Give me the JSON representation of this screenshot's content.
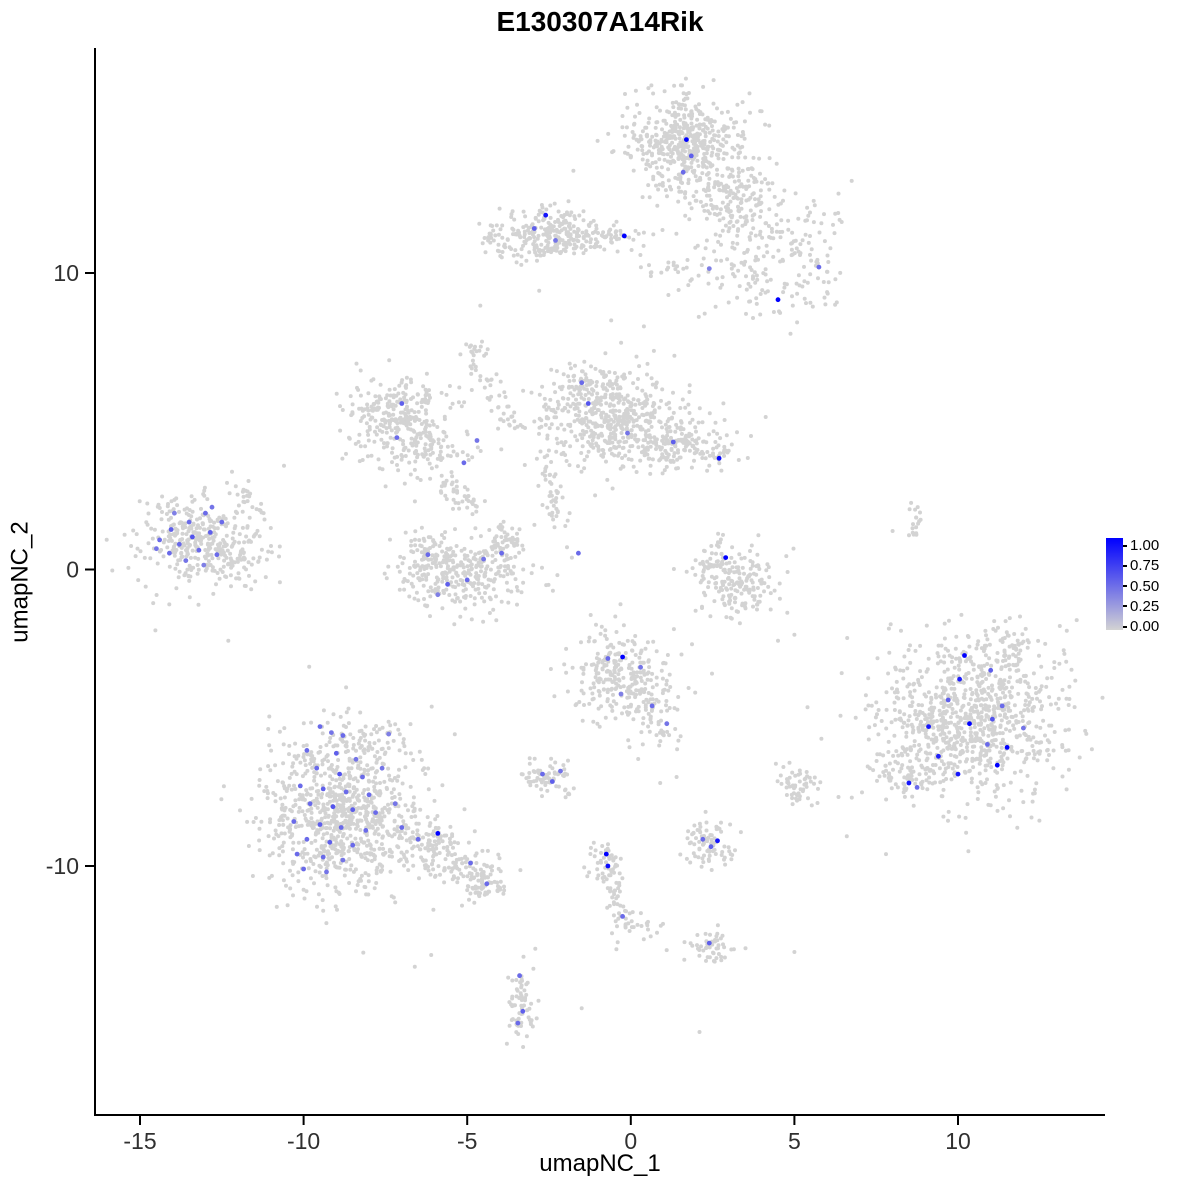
{
  "title": "E130307A14Rik",
  "axes": {
    "x": {
      "label": "umapNC_1",
      "ticks": [
        -15,
        -10,
        -5,
        0,
        5,
        10
      ],
      "range": [
        -16.4,
        14.5
      ]
    },
    "y": {
      "label": "umapNC_2",
      "ticks": [
        10,
        0,
        -10
      ],
      "range": [
        -18.4,
        17.6
      ]
    }
  },
  "legend": {
    "labels": [
      "1.00",
      "0.75",
      "0.50",
      "0.25",
      "0.00"
    ],
    "high": "#0000FF",
    "low": "#D3D3D3"
  },
  "chart_data": {
    "type": "scatter",
    "title": "E130307A14Rik",
    "xlabel": "umapNC_1",
    "ylabel": "umapNC_2",
    "xlim": [
      -16.4,
      14.5
    ],
    "ylim": [
      -18.4,
      17.6
    ],
    "grid": false,
    "legend_position": "right",
    "color_low": "#D3D3D3",
    "color_high": "#0000FF",
    "point_radius": 2,
    "clusters": [
      {
        "name": "top-main",
        "cx": 1.7,
        "cy": 14.3,
        "sx": 0.95,
        "sy": 0.85,
        "n": 500
      },
      {
        "name": "top-sub",
        "cx": 3.2,
        "cy": 12.7,
        "sx": 0.7,
        "sy": 0.6,
        "n": 120
      },
      {
        "name": "top-right-scatter",
        "cx": 4.6,
        "cy": 11.4,
        "sx": 1.2,
        "sy": 0.8,
        "n": 80
      },
      {
        "name": "top-small",
        "cx": 1.0,
        "cy": 10.2,
        "sx": 0.35,
        "sy": 0.15,
        "n": 14
      },
      {
        "name": "upper-mid",
        "cx": -2.5,
        "cy": 11.4,
        "sx": 0.85,
        "sy": 0.42,
        "n": 220
      },
      {
        "name": "upper-mid-tail",
        "cx": -0.9,
        "cy": 11.2,
        "sx": 0.7,
        "sy": 0.3,
        "n": 60
      },
      {
        "name": "upper-mid-left",
        "cx": -4.2,
        "cy": 11.1,
        "sx": 0.3,
        "sy": 0.25,
        "n": 25
      },
      {
        "name": "upper-right-scatter",
        "cx": 4.3,
        "cy": 10.1,
        "sx": 1.2,
        "sy": 0.85,
        "n": 140
      },
      {
        "name": "mid-left",
        "cx": -7.2,
        "cy": 5.2,
        "sx": 0.85,
        "sy": 0.7,
        "n": 280
      },
      {
        "name": "mid-left-arm",
        "cx": -6.2,
        "cy": 4.0,
        "sx": 0.6,
        "sy": 0.55,
        "n": 80
      },
      {
        "name": "central",
        "cx": -0.6,
        "cy": 5.0,
        "sx": 1.15,
        "sy": 0.8,
        "n": 550
      },
      {
        "name": "central-right",
        "cx": 1.5,
        "cy": 4.2,
        "sx": 0.8,
        "sy": 0.5,
        "n": 120
      },
      {
        "name": "central-tip",
        "cx": 2.5,
        "cy": 3.8,
        "sx": 0.3,
        "sy": 0.2,
        "n": 25
      },
      {
        "name": "central-top",
        "cx": -1.4,
        "cy": 6.4,
        "sx": 0.5,
        "sy": 0.3,
        "n": 40
      },
      {
        "name": "far-left",
        "cx": -13.3,
        "cy": 1.0,
        "sx": 0.85,
        "sy": 0.75,
        "n": 330
      },
      {
        "name": "far-left-edge",
        "cx": -11.9,
        "cy": 0.4,
        "sx": 0.5,
        "sy": 0.45,
        "n": 60
      },
      {
        "name": "far-left-nub",
        "cx": -11.5,
        "cy": 2.3,
        "sx": 0.25,
        "sy": 0.3,
        "n": 22
      },
      {
        "name": "center-low-core",
        "cx": -5.2,
        "cy": -0.2,
        "sx": 0.95,
        "sy": 0.55,
        "n": 300
      },
      {
        "name": "center-low-left-arm",
        "cx": -6.3,
        "cy": 0.7,
        "sx": 0.35,
        "sy": 0.4,
        "n": 55
      },
      {
        "name": "center-low-right-arm",
        "cx": -3.9,
        "cy": 0.8,
        "sx": 0.35,
        "sy": 0.4,
        "n": 55
      },
      {
        "name": "right-crescent",
        "cx": 3.3,
        "cy": -0.5,
        "sx": 0.6,
        "sy": 0.6,
        "n": 170
      },
      {
        "name": "right-crescent-arm",
        "cx": 2.6,
        "cy": 0.3,
        "sx": 0.3,
        "sy": 0.35,
        "n": 45
      },
      {
        "name": "mid-low",
        "cx": -0.4,
        "cy": -3.6,
        "sx": 0.75,
        "sy": 0.75,
        "n": 260
      },
      {
        "name": "mid-low-tail",
        "cx": 0.8,
        "cy": -4.9,
        "sx": 0.45,
        "sy": 0.5,
        "n": 60
      },
      {
        "name": "right-main",
        "cx": 10.4,
        "cy": -5.0,
        "sx": 1.45,
        "sy": 1.25,
        "n": 900
      },
      {
        "name": "right-main-top",
        "cx": 11.3,
        "cy": -2.8,
        "sx": 0.7,
        "sy": 0.45,
        "n": 70
      },
      {
        "name": "right-main-tip",
        "cx": 8.4,
        "cy": -6.9,
        "sx": 0.5,
        "sy": 0.4,
        "n": 70
      },
      {
        "name": "bottom-left-main",
        "cx": -8.8,
        "cy": -8.2,
        "sx": 1.25,
        "sy": 1.35,
        "n": 900
      },
      {
        "name": "bottom-left-top",
        "cx": -8.2,
        "cy": -5.9,
        "sx": 0.6,
        "sy": 0.4,
        "n": 55
      },
      {
        "name": "bottom-left-tip",
        "cx": -4.4,
        "cy": -10.6,
        "sx": 0.4,
        "sy": 0.35,
        "n": 60
      },
      {
        "name": "small-center-low",
        "cx": -2.5,
        "cy": -7.0,
        "sx": 0.4,
        "sy": 0.33,
        "n": 70
      },
      {
        "name": "small-right-low",
        "cx": 2.4,
        "cy": -9.2,
        "sx": 0.42,
        "sy": 0.38,
        "n": 80
      },
      {
        "name": "small-mid-strand-top",
        "cx": -0.8,
        "cy": -9.9,
        "sx": 0.28,
        "sy": 0.45,
        "n": 50
      },
      {
        "name": "small-below",
        "cx": 0.1,
        "cy": -12.1,
        "sx": 0.4,
        "sy": 0.35,
        "n": 28
      },
      {
        "name": "small-bottom-right",
        "cx": 2.5,
        "cy": -12.7,
        "sx": 0.33,
        "sy": 0.28,
        "n": 48
      },
      {
        "name": "bottom-strand",
        "cx": -3.4,
        "cy": -14.6,
        "sx": 0.22,
        "sy": 0.75,
        "n": 70
      },
      {
        "name": "small-right-mid",
        "cx": 5.1,
        "cy": -7.2,
        "sx": 0.33,
        "sy": 0.38,
        "n": 55
      }
    ],
    "strands": [
      {
        "x1": -4.9,
        "y1": 7.6,
        "x2": -3.7,
        "y2": 4.9,
        "n": 55,
        "jitter": 0.18
      },
      {
        "x1": -2.6,
        "y1": 3.4,
        "x2": -2.2,
        "y2": 1.4,
        "n": 40,
        "jitter": 0.15
      },
      {
        "x1": -5.9,
        "y1": 3.0,
        "x2": -4.6,
        "y2": 2.1,
        "n": 40,
        "jitter": 0.18
      },
      {
        "x1": -0.7,
        "y1": -10.3,
        "x2": -0.2,
        "y2": -12.0,
        "n": 32,
        "jitter": 0.12
      },
      {
        "x1": 8.65,
        "y1": 2.1,
        "x2": 8.75,
        "y2": 0.9,
        "n": 18,
        "jitter": 0.1
      },
      {
        "x1": -6.6,
        "y1": -9.0,
        "x2": -4.6,
        "y2": -10.4,
        "n": 150,
        "jitter": 0.4
      },
      {
        "x1": -3.3,
        "y1": 10.6,
        "x2": -2.0,
        "y2": 10.9,
        "n": 20,
        "jitter": 0.12
      },
      {
        "x1": 2.5,
        "y1": 12.3,
        "x2": 3.6,
        "y2": 11.6,
        "n": 25,
        "jitter": 0.25
      }
    ],
    "singles": [
      [
        -10.6,
        3.5
      ],
      [
        -4.6,
        8.9
      ],
      [
        -0.6,
        8.4
      ],
      [
        0.4,
        8.2
      ],
      [
        8.0,
        1.3
      ],
      [
        -6.6,
        -13.4
      ],
      [
        -6.1,
        -13.0
      ],
      [
        2.1,
        -15.6
      ],
      [
        5.0,
        -12.9
      ],
      [
        6.6,
        -9.0
      ],
      [
        -1.5,
        -14.8
      ],
      [
        7.8,
        -9.6
      ],
      [
        0.9,
        -7.2
      ],
      [
        1.4,
        -7.0
      ],
      [
        -12.3,
        -2.4
      ],
      [
        4.5,
        -2.4
      ],
      [
        5.0,
        -2.2
      ],
      [
        -1.8,
        0.4
      ],
      [
        -1.95,
        0.75
      ],
      [
        -2.8,
        9.4
      ]
    ],
    "expressing": [
      [
        1.7,
        14.5,
        1.0
      ],
      [
        1.85,
        13.95,
        0.55
      ],
      [
        1.6,
        13.4,
        0.5
      ],
      [
        -2.6,
        11.95,
        0.9
      ],
      [
        -2.95,
        11.5,
        0.55
      ],
      [
        -2.3,
        11.1,
        0.45
      ],
      [
        -0.2,
        11.25,
        1.0
      ],
      [
        2.4,
        10.15,
        0.4
      ],
      [
        5.75,
        10.2,
        0.5
      ],
      [
        4.5,
        9.1,
        1.0
      ],
      [
        -1.5,
        6.3,
        0.5
      ],
      [
        -1.3,
        5.6,
        0.6
      ],
      [
        1.3,
        4.3,
        0.55
      ],
      [
        2.7,
        3.75,
        0.95
      ],
      [
        -0.1,
        4.6,
        0.45
      ],
      [
        -7.0,
        5.6,
        0.55
      ],
      [
        -7.15,
        4.45,
        0.5
      ],
      [
        -5.1,
        3.6,
        0.5
      ],
      [
        -4.7,
        4.35,
        0.45
      ],
      [
        -6.2,
        0.5,
        0.5
      ],
      [
        -5.6,
        -0.5,
        0.55
      ],
      [
        -5.0,
        -0.35,
        0.5
      ],
      [
        -4.5,
        0.35,
        0.45
      ],
      [
        -3.95,
        0.55,
        0.5
      ],
      [
        -5.9,
        -0.85,
        0.4
      ],
      [
        -1.6,
        0.55,
        0.5
      ],
      [
        2.9,
        0.4,
        1.0
      ],
      [
        -14.4,
        1.0,
        0.5
      ],
      [
        -14.05,
        1.35,
        0.55
      ],
      [
        -13.8,
        0.85,
        0.5
      ],
      [
        -13.5,
        1.6,
        0.5
      ],
      [
        -13.4,
        1.1,
        0.6
      ],
      [
        -13.2,
        0.65,
        0.5
      ],
      [
        -13.0,
        1.9,
        0.5
      ],
      [
        -12.85,
        1.25,
        0.55
      ],
      [
        -12.65,
        0.5,
        0.5
      ],
      [
        -13.6,
        0.3,
        0.45
      ],
      [
        -14.1,
        0.55,
        0.5
      ],
      [
        -12.5,
        1.6,
        0.5
      ],
      [
        -13.05,
        0.15,
        0.4
      ],
      [
        -12.8,
        2.1,
        0.45
      ],
      [
        -13.95,
        1.9,
        0.4
      ],
      [
        -14.5,
        0.7,
        0.45
      ],
      [
        -0.25,
        -2.95,
        1.0
      ],
      [
        -0.7,
        -3.0,
        0.5
      ],
      [
        0.3,
        -3.3,
        0.45
      ],
      [
        0.65,
        -4.6,
        0.5
      ],
      [
        1.1,
        -5.2,
        0.45
      ],
      [
        -0.3,
        -4.2,
        0.4
      ],
      [
        10.2,
        -2.9,
        1.0
      ],
      [
        10.05,
        -3.7,
        0.85
      ],
      [
        11.0,
        -3.4,
        0.55
      ],
      [
        9.1,
        -5.3,
        0.9
      ],
      [
        10.35,
        -5.2,
        1.0
      ],
      [
        11.05,
        -5.05,
        0.6
      ],
      [
        10.9,
        -5.9,
        0.5
      ],
      [
        11.5,
        -6.0,
        1.0
      ],
      [
        9.4,
        -6.3,
        0.85
      ],
      [
        11.2,
        -6.6,
        1.0
      ],
      [
        10.0,
        -6.9,
        0.9
      ],
      [
        8.5,
        -7.2,
        0.9
      ],
      [
        8.75,
        -7.35,
        0.5
      ],
      [
        11.35,
        -4.6,
        0.5
      ],
      [
        12.0,
        -5.35,
        0.45
      ],
      [
        9.7,
        -4.4,
        0.55
      ],
      [
        -9.5,
        -5.3,
        0.5
      ],
      [
        -9.15,
        -5.5,
        0.45
      ],
      [
        -8.8,
        -5.6,
        0.5
      ],
      [
        -9.9,
        -6.1,
        0.5
      ],
      [
        -9.0,
        -6.2,
        0.55
      ],
      [
        -8.4,
        -6.4,
        0.45
      ],
      [
        -9.6,
        -6.7,
        0.5
      ],
      [
        -8.9,
        -6.9,
        0.6
      ],
      [
        -8.2,
        -7.0,
        0.5
      ],
      [
        -7.6,
        -6.7,
        0.45
      ],
      [
        -10.1,
        -7.3,
        0.5
      ],
      [
        -9.4,
        -7.4,
        0.55
      ],
      [
        -8.7,
        -7.5,
        0.5
      ],
      [
        -8.0,
        -7.6,
        0.5
      ],
      [
        -9.8,
        -7.9,
        0.5
      ],
      [
        -9.1,
        -8.0,
        0.6
      ],
      [
        -8.5,
        -8.1,
        0.55
      ],
      [
        -7.8,
        -8.2,
        0.5
      ],
      [
        -7.2,
        -7.9,
        0.45
      ],
      [
        -10.3,
        -8.5,
        0.5
      ],
      [
        -9.5,
        -8.6,
        0.55
      ],
      [
        -8.85,
        -8.7,
        0.5
      ],
      [
        -8.1,
        -8.8,
        0.5
      ],
      [
        -9.9,
        -9.1,
        0.5
      ],
      [
        -9.2,
        -9.2,
        0.55
      ],
      [
        -8.5,
        -9.3,
        0.5
      ],
      [
        -10.2,
        -9.6,
        0.5
      ],
      [
        -9.4,
        -9.7,
        0.5
      ],
      [
        -8.8,
        -9.8,
        0.45
      ],
      [
        -10.0,
        -10.1,
        0.5
      ],
      [
        -9.3,
        -10.2,
        0.45
      ],
      [
        -7.0,
        -8.7,
        0.5
      ],
      [
        -6.5,
        -9.1,
        0.5
      ],
      [
        -5.9,
        -8.9,
        1.0
      ],
      [
        -4.9,
        -9.9,
        0.5
      ],
      [
        -4.4,
        -10.6,
        0.5
      ],
      [
        -7.4,
        -5.55,
        0.4
      ],
      [
        -2.7,
        -6.9,
        0.5
      ],
      [
        -2.4,
        -7.15,
        0.55
      ],
      [
        -2.15,
        -6.8,
        0.45
      ],
      [
        2.2,
        -9.1,
        0.5
      ],
      [
        2.45,
        -9.35,
        0.55
      ],
      [
        2.65,
        -9.15,
        0.9
      ],
      [
        -0.75,
        -9.6,
        1.0
      ],
      [
        -0.7,
        -10.0,
        0.95
      ],
      [
        -0.25,
        -11.7,
        0.5
      ],
      [
        2.4,
        -12.6,
        0.55
      ],
      [
        -3.4,
        -13.7,
        0.5
      ],
      [
        -3.3,
        -14.9,
        0.55
      ],
      [
        -3.45,
        -15.3,
        0.5
      ]
    ]
  }
}
